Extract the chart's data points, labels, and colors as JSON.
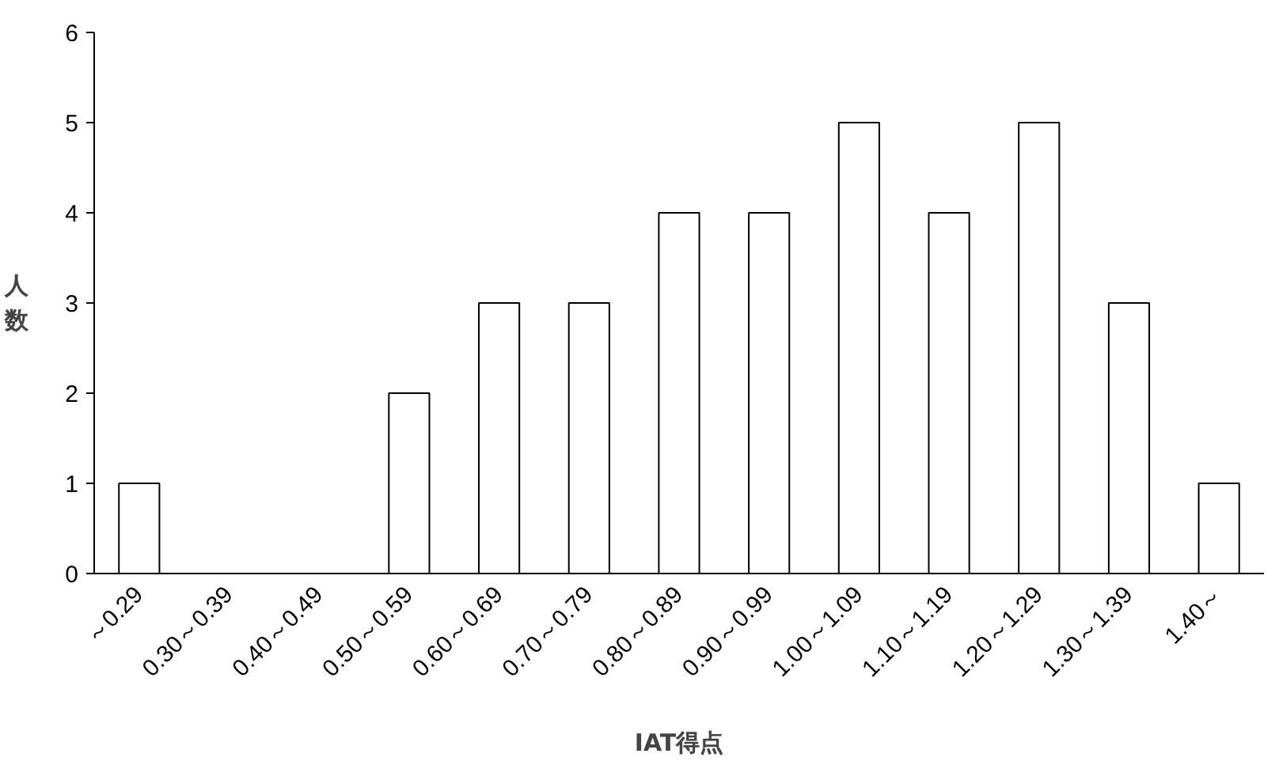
{
  "chart_data": {
    "type": "bar",
    "xlabel": "IAT得点",
    "ylabel": "人数",
    "categories": [
      "～0.29",
      "0.30～0.39",
      "0.40～0.49",
      "0.50～0.59",
      "0.60～0.69",
      "0.70～0.79",
      "0.80～0.89",
      "0.90～0.99",
      "1.00～1.09",
      "1.10～1.19",
      "1.20～1.29",
      "1.30～1.39",
      "1.40～"
    ],
    "values": [
      1,
      0,
      0,
      2,
      3,
      3,
      4,
      4,
      5,
      4,
      5,
      3,
      1
    ],
    "color": "#ffffff",
    "ylim": [
      0,
      6
    ],
    "yticks": [
      0,
      1,
      2,
      3,
      4,
      5,
      6
    ],
    "grid": false
  }
}
